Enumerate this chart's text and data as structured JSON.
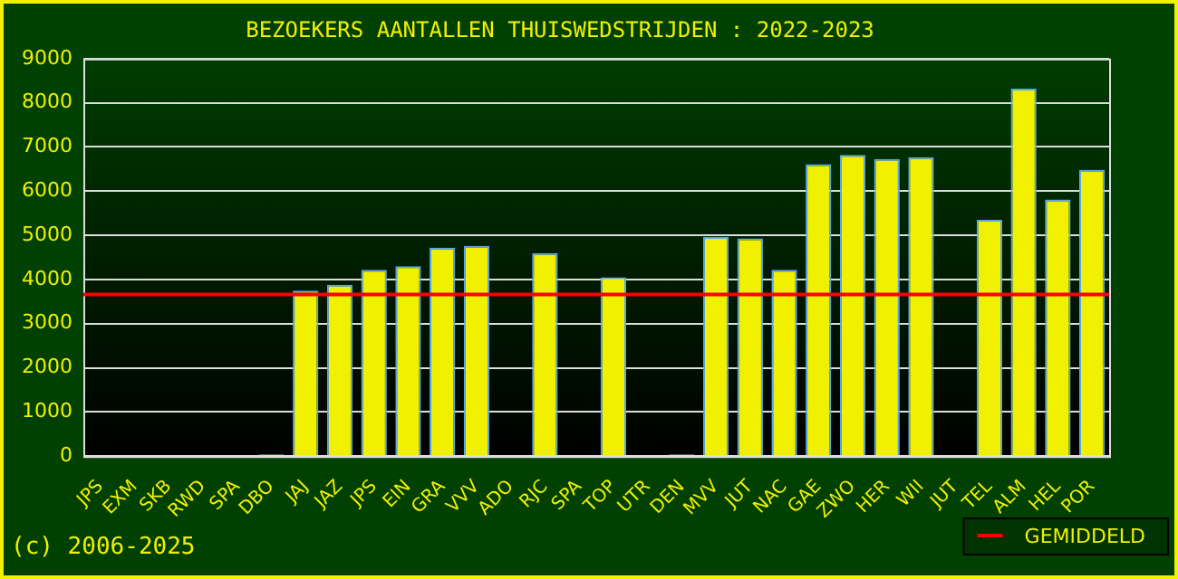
{
  "chart_data": {
    "type": "bar",
    "title": "BEZOEKERS AANTALLEN THUISWEDSTRIJDEN : 2022-2023",
    "categories": [
      "JPS",
      "EXM",
      "SKB",
      "RWD",
      "SPA",
      "DBO",
      "JAJ",
      "JAZ",
      "JPS",
      "EIN",
      "GRA",
      "VVV",
      "ADO",
      "RJC",
      "SPA",
      "TOP",
      "UTR",
      "DEN",
      "MVV",
      "JUT",
      "NAC",
      "GAE",
      "ZWO",
      "HER",
      "WII",
      "JUT",
      "TEL",
      "ALM",
      "HEL",
      "POR"
    ],
    "values": [
      null,
      null,
      null,
      null,
      null,
      40,
      3750,
      3880,
      4220,
      4300,
      4720,
      4760,
      null,
      4600,
      null,
      4050,
      null,
      40,
      4960,
      4930,
      4220,
      6610,
      6820,
      6730,
      6770,
      null,
      5350,
      8320,
      5810,
      6480
    ],
    "color": "#f0f000",
    "ylim": [
      0,
      9000
    ],
    "yticks": [
      0,
      1000,
      2000,
      3000,
      4000,
      5000,
      6000,
      7000,
      8000,
      9000
    ],
    "grid": "y",
    "legend": "bottom right",
    "ref_lines": [
      {
        "axis": "y",
        "value": 3660,
        "label": "GEMIDDELD",
        "color": "#ff0000"
      }
    ],
    "annotations": [
      "(c) 2006-2025"
    ]
  }
}
